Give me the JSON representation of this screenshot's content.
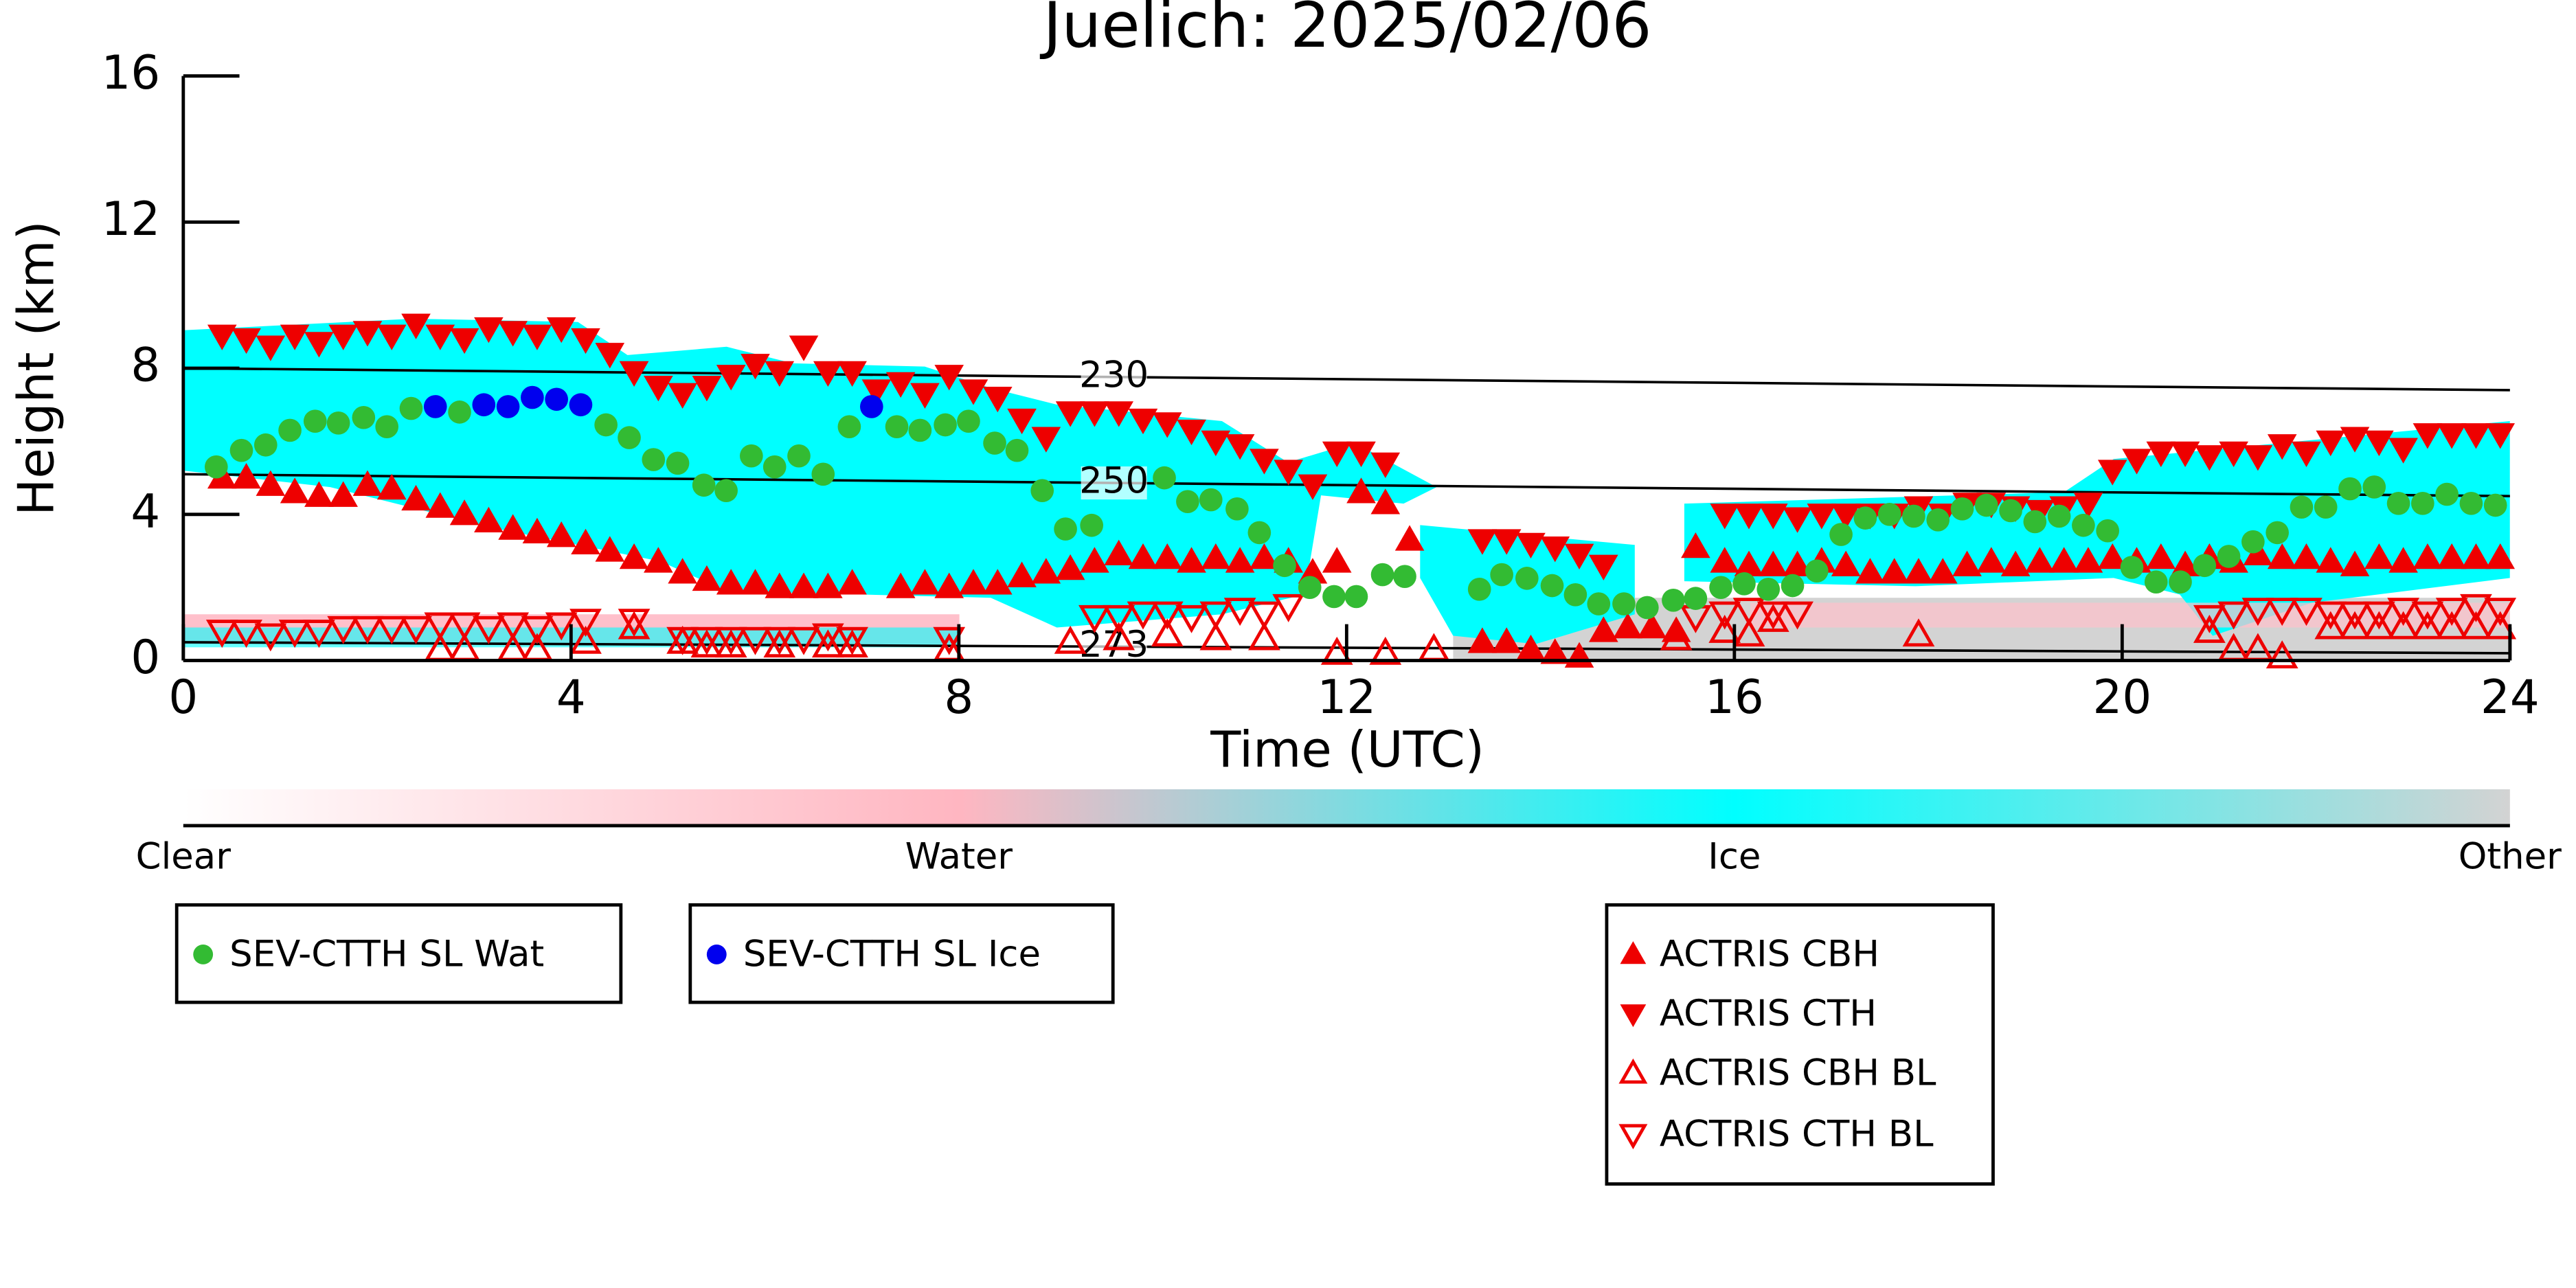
{
  "chart_data": {
    "type": "scatter",
    "title": "Juelich: 2025/02/06",
    "x_label": "Time (UTC)",
    "y_label": "Height (km)",
    "xlim": [
      0,
      24
    ],
    "xticks": [
      0,
      4,
      8,
      12,
      16,
      20,
      24
    ],
    "ylim": [
      0,
      16
    ],
    "yticks": [
      0,
      4,
      8,
      12,
      16
    ],
    "contours": [
      {
        "label": "230",
        "x": [
          0,
          24
        ],
        "values": [
          8.0,
          7.4
        ]
      },
      {
        "label": "250",
        "x": [
          0,
          24
        ],
        "values": [
          5.1,
          4.5
        ]
      },
      {
        "label": "273",
        "x": [
          0,
          24
        ],
        "values": [
          0.5,
          0.2
        ]
      }
    ],
    "colorbar": {
      "labels": [
        "Clear",
        "Water",
        "Ice",
        "Other"
      ],
      "colors": [
        "#ffffff",
        "#ffb6c1",
        "#00ffff",
        "#d3d3d3"
      ]
    },
    "series": [
      {
        "name": "SEV-CTTH SL Wat",
        "color": "#33bb33",
        "marker": "circle",
        "x": [
          0.34,
          0.6,
          0.85,
          1.1,
          1.36,
          1.6,
          1.86,
          2.1,
          2.35,
          2.85,
          4.36,
          4.6,
          4.85,
          5.1,
          5.37,
          5.6,
          5.86,
          6.1,
          6.35,
          6.6,
          6.87,
          7.36,
          7.6,
          7.86,
          8.1,
          8.37,
          8.6,
          8.86,
          9.1,
          9.37,
          10.12,
          10.36,
          10.6,
          10.87,
          11.1,
          11.36,
          11.62,
          11.87,
          12.1,
          12.37,
          12.6,
          13.37,
          13.6,
          13.86,
          14.12,
          14.36,
          14.6,
          14.86,
          15.1,
          15.37,
          15.6,
          15.86,
          16.1,
          16.35,
          16.6,
          16.85,
          17.1,
          17.35,
          17.6,
          17.85,
          18.1,
          18.35,
          18.6,
          18.85,
          19.1,
          19.35,
          19.6,
          19.85,
          20.1,
          20.35,
          20.6,
          20.85,
          21.1,
          21.35,
          21.6,
          21.85,
          22.1,
          22.35,
          22.6,
          22.85,
          23.1,
          23.35,
          23.6,
          23.85
        ],
        "values": [
          5.3,
          5.75,
          5.9,
          6.3,
          6.55,
          6.5,
          6.65,
          6.4,
          6.9,
          6.8,
          6.45,
          6.1,
          5.5,
          5.4,
          4.8,
          4.65,
          5.6,
          5.3,
          5.6,
          5.1,
          6.4,
          6.4,
          6.3,
          6.45,
          6.55,
          5.95,
          5.75,
          4.65,
          3.6,
          3.7,
          5.0,
          4.35,
          4.4,
          4.15,
          3.5,
          2.6,
          2.0,
          1.75,
          1.75,
          2.35,
          2.3,
          1.95,
          2.35,
          2.25,
          2.05,
          1.8,
          1.55,
          1.55,
          1.45,
          1.65,
          1.7,
          2.0,
          2.1,
          1.95,
          2.05,
          2.45,
          3.45,
          3.9,
          4.0,
          3.95,
          3.85,
          4.15,
          4.25,
          4.1,
          3.8,
          3.95,
          3.7,
          3.55,
          2.55,
          2.15,
          2.15,
          2.6,
          2.85,
          3.25,
          3.5,
          4.2,
          4.2,
          4.7,
          4.75,
          4.3,
          4.3,
          4.55,
          4.3,
          4.25
        ]
      },
      {
        "name": "SEV-CTTH SL Ice",
        "color": "#0000ee",
        "marker": "circle",
        "x": [
          2.6,
          3.1,
          3.35,
          3.6,
          3.85,
          4.1,
          7.1
        ],
        "values": [
          6.95,
          7.0,
          6.95,
          7.2,
          7.15,
          7.0,
          6.95
        ]
      },
      {
        "name": "ACTRIS CBH",
        "color": "#ee0000",
        "marker": "triangle-up",
        "x": [
          0.4,
          0.65,
          0.9,
          1.15,
          1.4,
          1.65,
          1.9,
          2.15,
          2.4,
          2.65,
          2.9,
          3.15,
          3.4,
          3.65,
          3.9,
          4.15,
          4.4,
          4.65,
          4.9,
          5.15,
          5.4,
          5.65,
          5.9,
          6.15,
          6.4,
          6.65,
          6.9,
          7.4,
          7.65,
          7.9,
          8.15,
          8.4,
          8.65,
          8.9,
          9.15,
          9.4,
          9.65,
          9.9,
          10.15,
          10.4,
          10.65,
          10.9,
          11.15,
          11.4,
          11.65,
          11.9,
          12.15,
          12.4,
          12.65,
          13.4,
          13.65,
          13.9,
          14.15,
          14.4,
          14.65,
          14.9,
          15.15,
          15.4,
          15.6,
          15.9,
          16.15,
          16.4,
          16.65,
          16.9,
          17.15,
          17.4,
          17.65,
          17.9,
          18.15,
          18.4,
          18.65,
          18.9,
          19.15,
          19.4,
          19.65,
          19.9,
          20.15,
          20.4,
          20.65,
          20.9,
          21.15,
          21.4,
          21.65,
          21.9,
          22.15,
          22.4,
          22.65,
          22.9,
          23.15,
          23.4,
          23.65,
          23.9
        ],
        "values": [
          5.0,
          5.0,
          4.8,
          4.6,
          4.5,
          4.5,
          4.8,
          4.7,
          4.4,
          4.2,
          4.0,
          3.8,
          3.6,
          3.5,
          3.4,
          3.2,
          3.0,
          2.8,
          2.7,
          2.4,
          2.2,
          2.1,
          2.1,
          2.0,
          2.0,
          2.0,
          2.1,
          2.0,
          2.1,
          2.0,
          2.1,
          2.1,
          2.3,
          2.4,
          2.5,
          2.7,
          2.9,
          2.8,
          2.8,
          2.7,
          2.8,
          2.7,
          2.8,
          2.7,
          2.4,
          2.7,
          4.6,
          4.3,
          3.3,
          0.5,
          0.5,
          0.3,
          0.2,
          0.1,
          0.8,
          0.9,
          0.9,
          0.8,
          3.1,
          2.7,
          2.6,
          2.6,
          2.6,
          2.7,
          2.6,
          2.4,
          2.4,
          2.4,
          2.4,
          2.6,
          2.7,
          2.6,
          2.7,
          2.7,
          2.7,
          2.8,
          2.7,
          2.8,
          2.6,
          2.8,
          2.7,
          2.9,
          2.8,
          2.8,
          2.7,
          2.6,
          2.8,
          2.7,
          2.8,
          2.8,
          2.8,
          2.8
        ]
      },
      {
        "name": "ACTRIS CTH",
        "color": "#ee0000",
        "marker": "triangle-down",
        "x": [
          0.4,
          0.65,
          0.9,
          1.15,
          1.4,
          1.65,
          1.9,
          2.15,
          2.4,
          2.65,
          2.9,
          3.15,
          3.4,
          3.65,
          3.9,
          4.15,
          4.4,
          4.65,
          4.9,
          5.15,
          5.4,
          5.65,
          5.9,
          6.15,
          6.4,
          6.65,
          6.9,
          7.15,
          7.4,
          7.65,
          7.9,
          8.15,
          8.4,
          8.65,
          8.9,
          9.15,
          9.4,
          9.65,
          9.9,
          10.15,
          10.4,
          10.65,
          10.9,
          11.15,
          11.4,
          11.65,
          11.9,
          12.15,
          12.4,
          13.4,
          13.65,
          13.9,
          14.15,
          14.4,
          14.65,
          15.9,
          16.15,
          16.4,
          16.65,
          16.9,
          17.15,
          17.4,
          17.65,
          17.9,
          18.15,
          18.4,
          18.65,
          18.9,
          19.15,
          19.4,
          19.65,
          19.9,
          20.15,
          20.4,
          20.65,
          20.9,
          21.15,
          21.4,
          21.65,
          21.9,
          22.15,
          22.4,
          22.65,
          22.9,
          23.15,
          23.4,
          23.65,
          23.9
        ],
        "values": [
          8.9,
          8.8,
          8.6,
          8.9,
          8.7,
          8.9,
          9.0,
          8.9,
          9.2,
          8.9,
          8.8,
          9.1,
          9.0,
          8.9,
          9.1,
          8.8,
          8.4,
          7.9,
          7.5,
          7.3,
          7.5,
          7.8,
          8.1,
          7.9,
          8.6,
          7.9,
          7.9,
          7.4,
          7.6,
          7.3,
          7.8,
          7.4,
          7.2,
          6.6,
          6.1,
          6.8,
          6.8,
          6.8,
          6.6,
          6.5,
          6.3,
          6.0,
          5.9,
          5.5,
          5.2,
          4.8,
          5.7,
          5.7,
          5.4,
          3.3,
          3.3,
          3.2,
          3.1,
          2.9,
          2.6,
          4.0,
          4.0,
          4.0,
          3.9,
          4.0,
          4.0,
          4.0,
          4.0,
          4.2,
          4.0,
          4.3,
          4.3,
          4.2,
          4.1,
          4.2,
          4.3,
          5.2,
          5.5,
          5.7,
          5.7,
          5.6,
          5.7,
          5.6,
          5.9,
          5.7,
          6.0,
          6.1,
          6.0,
          5.8,
          6.2,
          6.2,
          6.2,
          6.2
        ]
      },
      {
        "name": "ACTRIS CBH BL",
        "color": "#ee0000",
        "marker": "triangle-up-open",
        "x": [
          2.65,
          2.9,
          3.4,
          3.65,
          4.15,
          4.65,
          5.15,
          5.4,
          5.65,
          6.15,
          6.65,
          6.9,
          7.9,
          9.15,
          9.65,
          10.15,
          10.65,
          11.15,
          11.9,
          12.4,
          12.9,
          15.4,
          15.9,
          16.15,
          16.4,
          17.9,
          20.9,
          21.15,
          21.4,
          21.65,
          22.15,
          22.4,
          22.65,
          22.9,
          23.15,
          23.4,
          23.65,
          23.9
        ],
        "values": [
          0.3,
          0.3,
          0.3,
          0.3,
          0.5,
          0.9,
          0.5,
          0.4,
          0.4,
          0.4,
          0.4,
          0.4,
          0.3,
          0.5,
          0.6,
          0.7,
          0.6,
          0.6,
          0.2,
          0.2,
          0.3,
          0.6,
          0.8,
          0.7,
          1.1,
          0.7,
          0.8,
          0.3,
          0.3,
          0.1,
          0.9,
          0.9,
          0.9,
          0.9,
          0.9,
          0.9,
          0.9,
          0.9
        ]
      },
      {
        "name": "ACTRIS CTH BL",
        "color": "#ee0000",
        "marker": "triangle-down-open",
        "x": [
          0.4,
          0.65,
          0.9,
          1.15,
          1.4,
          1.65,
          1.9,
          2.15,
          2.4,
          2.65,
          2.9,
          3.15,
          3.4,
          3.65,
          3.9,
          4.15,
          4.65,
          5.15,
          5.4,
          5.65,
          5.9,
          6.15,
          6.4,
          6.65,
          6.9,
          7.9,
          9.4,
          9.65,
          9.9,
          10.15,
          10.4,
          10.65,
          10.9,
          11.15,
          11.4,
          15.6,
          15.9,
          16.15,
          16.4,
          16.65,
          20.9,
          21.15,
          21.4,
          21.65,
          21.9,
          22.15,
          22.4,
          22.65,
          22.9,
          23.15,
          23.4,
          23.65,
          23.9
        ],
        "values": [
          0.8,
          0.8,
          0.7,
          0.8,
          0.8,
          0.9,
          0.9,
          0.9,
          0.9,
          1.0,
          1.0,
          0.9,
          1.0,
          0.9,
          1.0,
          1.1,
          1.1,
          0.6,
          0.6,
          0.6,
          0.6,
          0.6,
          0.6,
          0.7,
          0.6,
          0.6,
          1.2,
          1.2,
          1.3,
          1.3,
          1.2,
          1.3,
          1.4,
          1.3,
          1.5,
          1.2,
          1.3,
          1.4,
          1.3,
          1.3,
          1.2,
          1.3,
          1.4,
          1.4,
          1.4,
          1.3,
          1.3,
          1.3,
          1.4,
          1.3,
          1.4,
          1.5,
          1.4
        ]
      }
    ]
  }
}
